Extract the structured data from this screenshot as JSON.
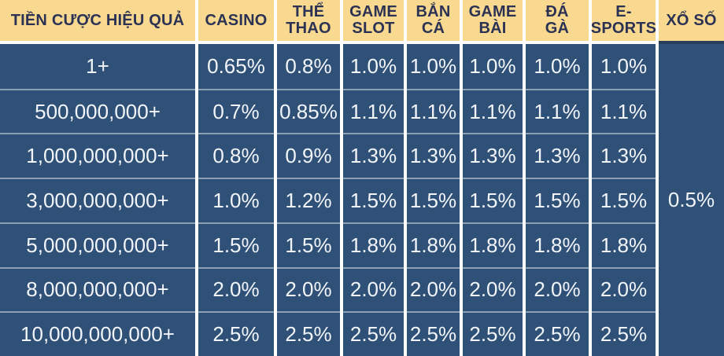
{
  "colors": {
    "header_bg": "#F9D98F",
    "header_text": "#2B3254",
    "cell_bg": "#2F5077",
    "cell_text": "#F2F5F9",
    "grid_gap": "#FFFFFF",
    "row_separator": "rgba(255,255,255,0.45)",
    "lottery_header_border": "#283C5C"
  },
  "table": {
    "tier_header": "TIỀN CƯỢC HIỆU QUẢ",
    "headers": [
      "CASINO",
      "THỂ\nTHAO",
      "GAME\nSLOT",
      "BẮN\nCÁ",
      "GAME\nBÀI",
      "ĐÁ\nGÀ",
      "E-\nSPORTS"
    ],
    "lottery": {
      "header": "XỔ SỐ",
      "value": "0.5%"
    },
    "rows": [
      {
        "tier": "1+",
        "values": [
          "0.65%",
          "0.8%",
          "1.0%",
          "1.0%",
          "1.0%",
          "1.0%",
          "1.0%"
        ]
      },
      {
        "tier": "500,000,000+",
        "values": [
          "0.7%",
          "0.85%",
          "1.1%",
          "1.1%",
          "1.1%",
          "1.1%",
          "1.1%"
        ]
      },
      {
        "tier": "1,000,000,000+",
        "values": [
          "0.8%",
          "0.9%",
          "1.3%",
          "1.3%",
          "1.3%",
          "1.3%",
          "1.3%"
        ]
      },
      {
        "tier": "3,000,000,000+",
        "values": [
          "1.0%",
          "1.2%",
          "1.5%",
          "1.5%",
          "1.5%",
          "1.5%",
          "1.5%"
        ]
      },
      {
        "tier": "5,000,000,000+",
        "values": [
          "1.5%",
          "1.5%",
          "1.8%",
          "1.8%",
          "1.8%",
          "1.8%",
          "1.8%"
        ]
      },
      {
        "tier": "8,000,000,000+",
        "values": [
          "2.0%",
          "2.0%",
          "2.0%",
          "2.0%",
          "2.0%",
          "2.0%",
          "2.0%"
        ]
      },
      {
        "tier": "10,000,000,000+",
        "values": [
          "2.5%",
          "2.5%",
          "2.5%",
          "2.5%",
          "2.5%",
          "2.5%",
          "2.5%"
        ]
      }
    ]
  }
}
